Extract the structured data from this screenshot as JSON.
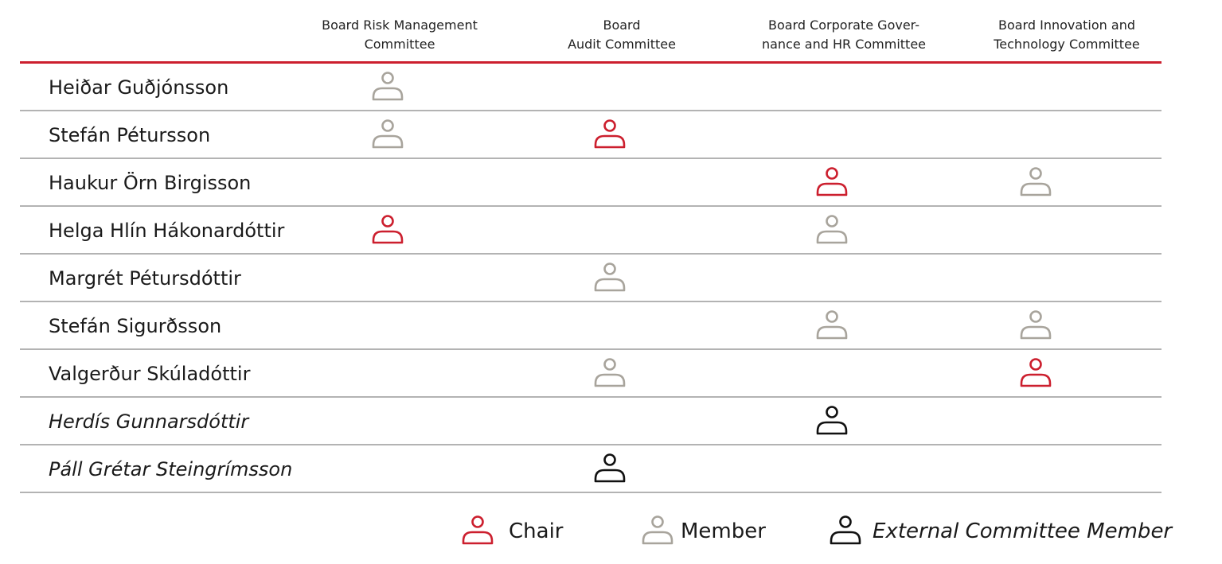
{
  "colors": {
    "chair": "#cc1f2e",
    "member": "#a8a49c",
    "external": "#111111",
    "accent_rule": "#cc1f2e",
    "row_divider": "#b3b3b3"
  },
  "columns": [
    {
      "key": "risk",
      "label": "Board Risk Management\nCommittee"
    },
    {
      "key": "audit",
      "label": "Board\nAudit Committee"
    },
    {
      "key": "governance",
      "label": "Board Corporate Gover-\nnance and HR Committee"
    },
    {
      "key": "innovation",
      "label": "Board Innovation and\nTechnology Committee"
    }
  ],
  "rows": [
    {
      "name": "Heiðar Guðjónsson",
      "external": false,
      "roles": {
        "risk": "member"
      }
    },
    {
      "name": "Stefán Pétursson",
      "external": false,
      "roles": {
        "risk": "member",
        "audit": "chair"
      }
    },
    {
      "name": "Haukur Örn Birgisson",
      "external": false,
      "roles": {
        "governance": "chair",
        "innovation": "member"
      }
    },
    {
      "name": "Helga Hlín Hákonardóttir",
      "external": false,
      "roles": {
        "risk": "chair",
        "governance": "member"
      }
    },
    {
      "name": "Margrét Pétursdóttir",
      "external": false,
      "roles": {
        "audit": "member"
      }
    },
    {
      "name": "Stefán Sigurðsson",
      "external": false,
      "roles": {
        "governance": "member",
        "innovation": "member"
      }
    },
    {
      "name": "Valgerður Skúladóttir",
      "external": false,
      "roles": {
        "audit": "member",
        "innovation": "chair"
      }
    },
    {
      "name": "Herdís Gunnarsdóttir",
      "external": true,
      "roles": {
        "governance": "external"
      }
    },
    {
      "name": "Páll Grétar Steingrímsson",
      "external": true,
      "roles": {
        "audit": "external"
      }
    }
  ],
  "legend": {
    "chair_label": "Chair",
    "member_label": "Member",
    "external_label": "External Committee Member"
  },
  "icons": {
    "chair": "person-icon",
    "member": "person-icon",
    "external": "person-icon"
  }
}
